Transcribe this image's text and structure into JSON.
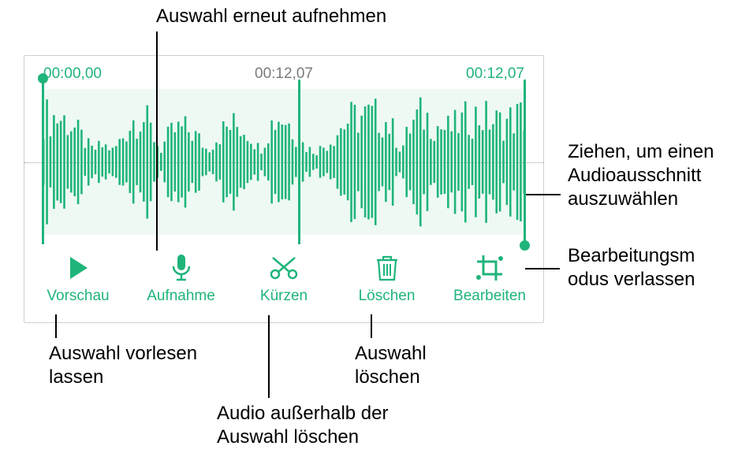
{
  "colors": {
    "accent": "#1fb47a",
    "accent_light": "#e8f6ef",
    "selection_bg": "#eef9f3",
    "edit_bg": "#c9ecd9",
    "panel_border": "#cfcfcf",
    "text": "#000000"
  },
  "times": {
    "start": "00:00,00",
    "playhead": "00:12,07",
    "end": "00:12,07"
  },
  "toolbar": {
    "preview": "Vorschau",
    "record": "Aufnahme",
    "trim": "Kürzen",
    "delete": "Löschen",
    "edit": "Bearbeiten"
  },
  "callouts": {
    "rerecord": "Auswahl erneut aufnehmen",
    "drag_select": "Ziehen, um einen Audioausschnitt auszuwählen",
    "exit_edit": "Bearbeitungsm odus verlassen",
    "preview_sel": "Auswahl vorlesen lassen",
    "trim_outside": "Audio außerhalb der Auswahl löschen",
    "delete_sel": "Auswahl löschen"
  },
  "waveform": {
    "bars": 140,
    "color": "#1fb47a"
  }
}
